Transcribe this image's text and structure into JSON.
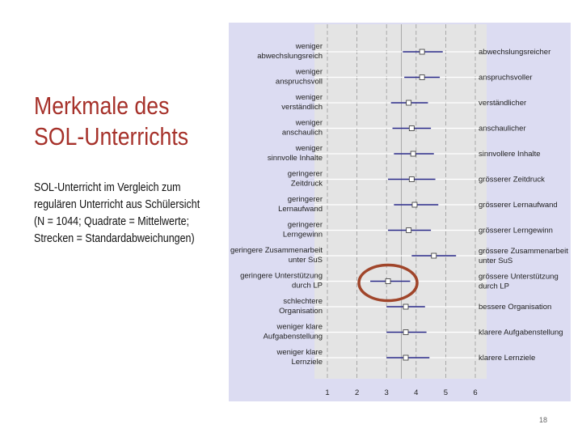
{
  "slide": {
    "title_line1": "Merkmale des",
    "title_line2": "SOL-Unterrichts",
    "subtitle_lines": [
      "SOL-Unterricht im Vergleich zum",
      "regulären Unterricht aus Schülersicht",
      "(N = 1044; Quadrate = Mittelwerte;",
      "Strecken = Standardabweichungen)"
    ],
    "page_number": "18"
  },
  "colors": {
    "title": "#a6312a",
    "panel_bg": "#dcdcf2",
    "plot_bg": "#e4e4e4",
    "error_bar": "#2a2a8a",
    "highlight_circle": "#a0452a"
  },
  "chart_data": {
    "type": "dot-errorbar",
    "xlim": [
      1,
      6
    ],
    "xticks": [
      "1",
      "2",
      "3",
      "4",
      "5",
      "6"
    ],
    "grid": "vertical dashed",
    "highlighted_item": 9,
    "items": [
      {
        "left": [
          "weniger",
          "abwechslungsreich"
        ],
        "right": [
          "abwechslungsreicher"
        ],
        "mean": 4.2,
        "low": 3.55,
        "high": 4.9
      },
      {
        "left": [
          "weniger",
          "anspruchsvoll"
        ],
        "right": [
          "anspruchsvoller"
        ],
        "mean": 4.2,
        "low": 3.6,
        "high": 4.8
      },
      {
        "left": [
          "weniger",
          "verständlich"
        ],
        "right": [
          "verständlicher"
        ],
        "mean": 3.75,
        "low": 3.15,
        "high": 4.4
      },
      {
        "left": [
          "weniger",
          "anschaulich"
        ],
        "right": [
          "anschaulicher"
        ],
        "mean": 3.85,
        "low": 3.2,
        "high": 4.5
      },
      {
        "left": [
          "weniger",
          "sinnvolle Inhalte"
        ],
        "right": [
          "sinnvollere Inhalte"
        ],
        "mean": 3.9,
        "low": 3.25,
        "high": 4.6
      },
      {
        "left": [
          "geringerer",
          "Zeitdruck"
        ],
        "right": [
          "grösserer Zeitdruck"
        ],
        "mean": 3.85,
        "low": 3.05,
        "high": 4.65
      },
      {
        "left": [
          "geringerer",
          "Lernaufwand"
        ],
        "right": [
          "grösserer Lernaufwand"
        ],
        "mean": 3.95,
        "low": 3.25,
        "high": 4.75
      },
      {
        "left": [
          "geringerer",
          "Lerngewinn"
        ],
        "right": [
          "grösserer Lerngewinn"
        ],
        "mean": 3.75,
        "low": 3.05,
        "high": 4.5
      },
      {
        "left": [
          "geringere Zusammenarbeit",
          "unter SuS"
        ],
        "right": [
          "grössere Zusammenarbeit",
          "unter SuS"
        ],
        "mean": 4.6,
        "low": 3.85,
        "high": 5.35
      },
      {
        "left": [
          "geringere Unterstützung",
          "durch LP"
        ],
        "right": [
          "grössere Unterstützung",
          "durch LP"
        ],
        "mean": 3.05,
        "low": 2.45,
        "high": 3.8
      },
      {
        "left": [
          "schlechtere",
          "Organisation"
        ],
        "right": [
          "bessere Organisation"
        ],
        "mean": 3.65,
        "low": 3.0,
        "high": 4.3
      },
      {
        "left": [
          "weniger klare",
          "Aufgabenstellung"
        ],
        "right": [
          "klarere Aufgabenstellung"
        ],
        "mean": 3.65,
        "low": 3.0,
        "high": 4.35
      },
      {
        "left": [
          "weniger klare",
          "Lernziele"
        ],
        "right": [
          "klarere Lernziele"
        ],
        "mean": 3.65,
        "low": 3.0,
        "high": 4.45
      }
    ]
  }
}
